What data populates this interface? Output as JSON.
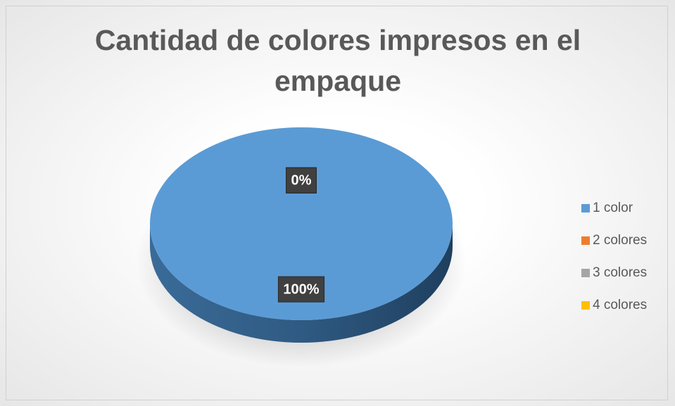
{
  "chart_data": {
    "type": "pie",
    "title": "Cantidad de colores impresos en el empaque",
    "categories": [
      "1 color",
      "2 colores",
      "3 colores",
      "4 colores"
    ],
    "values": [
      100,
      0,
      0,
      0
    ],
    "value_labels": [
      "100%",
      "0%",
      "0%",
      "0%"
    ],
    "colors": [
      "#5b9bd5",
      "#ed7d31",
      "#a5a5a5",
      "#ffc000"
    ],
    "legend": "right"
  }
}
